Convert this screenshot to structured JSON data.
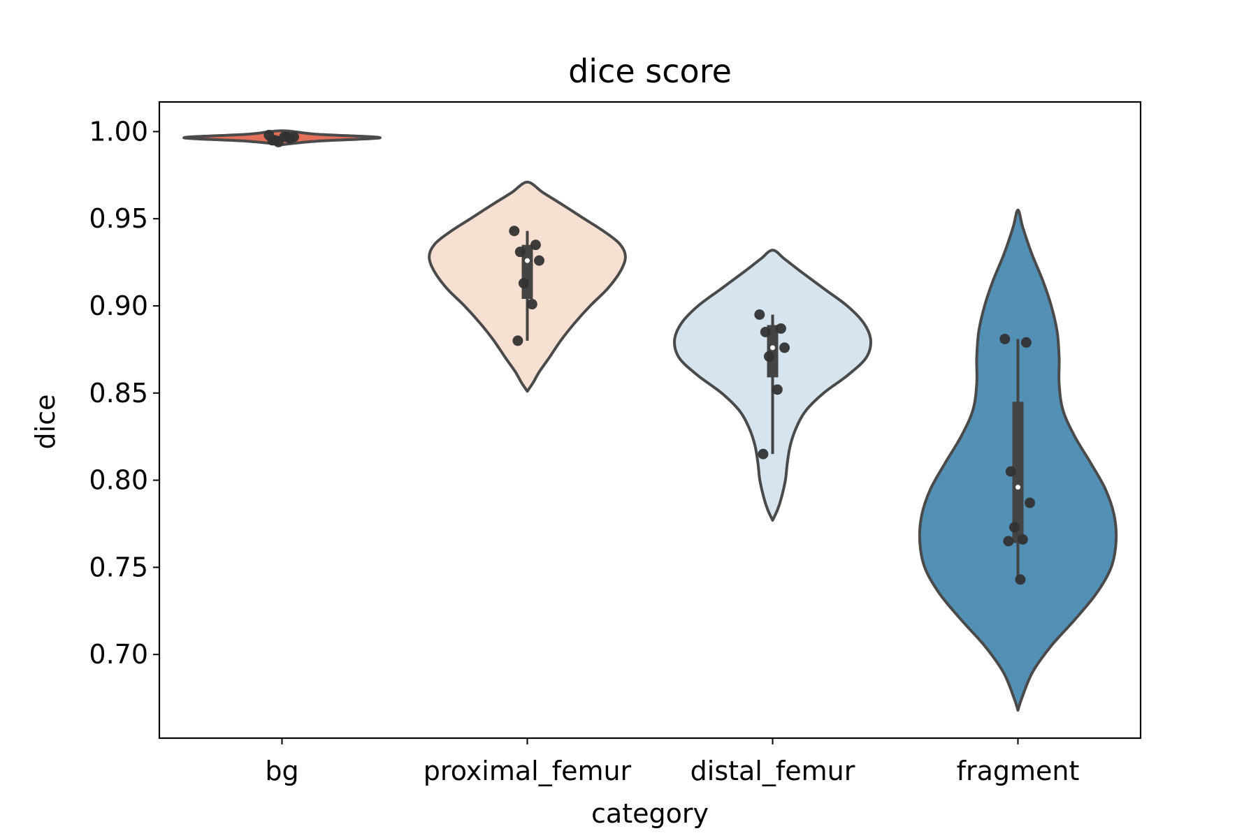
{
  "chart_data": {
    "type": "violin",
    "title": "dice score",
    "xlabel": "category",
    "ylabel": "dice",
    "ylim": [
      0.652,
      1.017
    ],
    "yticks": [
      0.7,
      0.75,
      0.8,
      0.85,
      0.9,
      0.95,
      1.0
    ],
    "ytick_labels": [
      "0.70",
      "0.75",
      "0.80",
      "0.85",
      "0.90",
      "0.95",
      "1.00"
    ],
    "grid": false,
    "legend": "none",
    "categories": [
      "bg",
      "proximal_femur",
      "distal_femur",
      "fragment"
    ],
    "series": [
      {
        "category": "bg",
        "color": "#e4705a",
        "range": [
          0.9925,
          1.0005
        ],
        "median": 0.9965,
        "q1": 0.9955,
        "q3": 0.9975,
        "density": [
          [
            0.9925,
            0.0
          ],
          [
            0.9945,
            0.35
          ],
          [
            0.9965,
            1.0
          ],
          [
            0.9985,
            0.35
          ],
          [
            1.0005,
            0.0
          ]
        ],
        "points": [
          0.998,
          0.996,
          0.995,
          0.997,
          0.994,
          0.997,
          0.995,
          0.997
        ]
      },
      {
        "category": "proximal_femur",
        "color": "#f7dfd2",
        "range": [
          0.851,
          0.971
        ],
        "median": 0.926,
        "q1": 0.904,
        "q3": 0.935,
        "density": [
          [
            0.851,
            0.0
          ],
          [
            0.856,
            0.06
          ],
          [
            0.862,
            0.12
          ],
          [
            0.87,
            0.22
          ],
          [
            0.88,
            0.34
          ],
          [
            0.89,
            0.48
          ],
          [
            0.9,
            0.64
          ],
          [
            0.91,
            0.82
          ],
          [
            0.92,
            0.95
          ],
          [
            0.928,
            1.0
          ],
          [
            0.935,
            0.95
          ],
          [
            0.942,
            0.8
          ],
          [
            0.95,
            0.58
          ],
          [
            0.958,
            0.36
          ],
          [
            0.965,
            0.16
          ],
          [
            0.971,
            0.0
          ]
        ],
        "points": [
          0.943,
          0.935,
          0.931,
          0.926,
          0.913,
          0.901,
          0.88
        ]
      },
      {
        "category": "distal_femur",
        "color": "#d5e4ee",
        "range": [
          0.777,
          0.932
        ],
        "median": 0.876,
        "q1": 0.859,
        "q3": 0.889,
        "density": [
          [
            0.777,
            0.0
          ],
          [
            0.783,
            0.05
          ],
          [
            0.79,
            0.09
          ],
          [
            0.8,
            0.13
          ],
          [
            0.81,
            0.15
          ],
          [
            0.82,
            0.18
          ],
          [
            0.83,
            0.24
          ],
          [
            0.84,
            0.34
          ],
          [
            0.85,
            0.52
          ],
          [
            0.86,
            0.76
          ],
          [
            0.87,
            0.95
          ],
          [
            0.88,
            1.0
          ],
          [
            0.89,
            0.93
          ],
          [
            0.9,
            0.76
          ],
          [
            0.91,
            0.52
          ],
          [
            0.92,
            0.28
          ],
          [
            0.927,
            0.12
          ],
          [
            0.932,
            0.0
          ]
        ],
        "points": [
          0.895,
          0.887,
          0.885,
          0.876,
          0.871,
          0.852,
          0.815
        ]
      },
      {
        "category": "fragment",
        "color": "#5290b6",
        "range": [
          0.668,
          0.955
        ],
        "median": 0.796,
        "q1": 0.764,
        "q3": 0.845,
        "density": [
          [
            0.668,
            0.0
          ],
          [
            0.675,
            0.04
          ],
          [
            0.69,
            0.15
          ],
          [
            0.705,
            0.34
          ],
          [
            0.72,
            0.58
          ],
          [
            0.735,
            0.8
          ],
          [
            0.75,
            0.95
          ],
          [
            0.765,
            1.0
          ],
          [
            0.78,
            0.98
          ],
          [
            0.795,
            0.89
          ],
          [
            0.81,
            0.74
          ],
          [
            0.825,
            0.58
          ],
          [
            0.84,
            0.46
          ],
          [
            0.855,
            0.42
          ],
          [
            0.87,
            0.42
          ],
          [
            0.885,
            0.4
          ],
          [
            0.9,
            0.34
          ],
          [
            0.915,
            0.25
          ],
          [
            0.93,
            0.14
          ],
          [
            0.945,
            0.05
          ],
          [
            0.955,
            0.0
          ]
        ],
        "points": [
          0.881,
          0.879,
          0.805,
          0.787,
          0.773,
          0.766,
          0.765,
          0.743
        ]
      }
    ]
  }
}
